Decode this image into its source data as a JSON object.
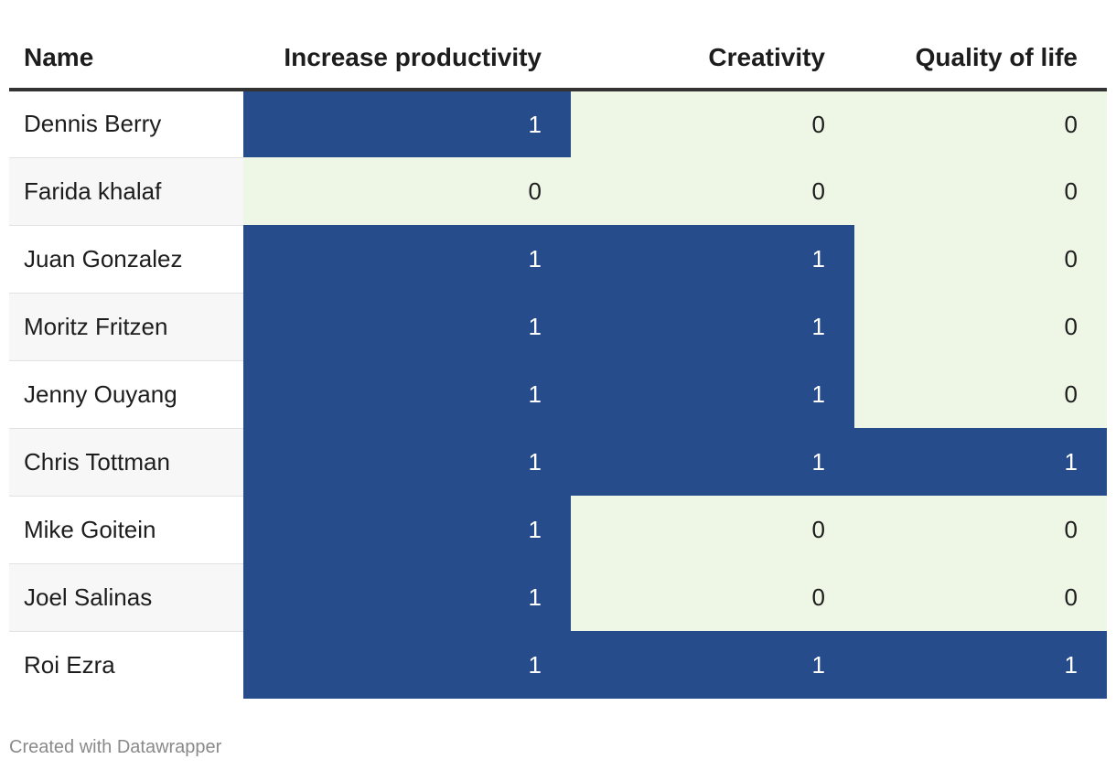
{
  "table": {
    "columns": [
      "Name",
      "Increase productivity",
      "Creativity",
      "Quality of life"
    ],
    "rows": [
      [
        "Dennis Berry",
        1,
        0,
        0
      ],
      [
        "Farida khalaf",
        0,
        0,
        0
      ],
      [
        "Juan Gonzalez",
        1,
        1,
        0
      ],
      [
        "Moritz Fritzen",
        1,
        1,
        0
      ],
      [
        "Jenny Ouyang",
        1,
        1,
        0
      ],
      [
        "Chris Tottman",
        1,
        1,
        1
      ],
      [
        "Mike Goitein",
        1,
        0,
        0
      ],
      [
        "Joel Salinas",
        1,
        0,
        0
      ],
      [
        "Roi Ezra",
        1,
        1,
        1
      ]
    ],
    "colors": [
      "#eef7e6",
      "#264c8c"
    ]
  },
  "footer": "Created with Datawrapper"
}
